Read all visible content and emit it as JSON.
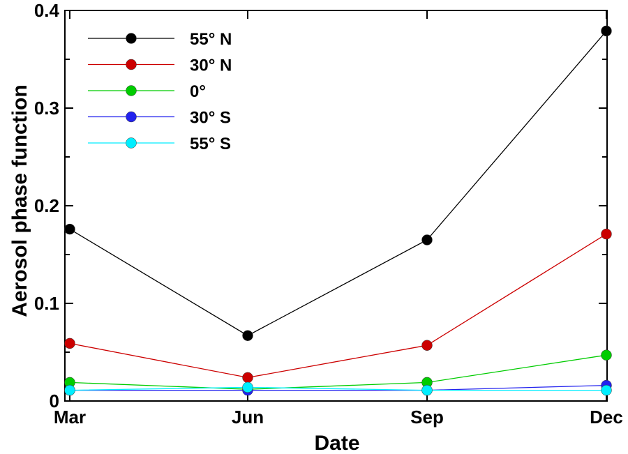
{
  "chart_data": {
    "type": "line",
    "title": "",
    "xlabel": "Date",
    "ylabel": "Aerosol phase function",
    "categories": [
      "Mar",
      "Jun",
      "Sep",
      "Dec"
    ],
    "ylim": [
      0,
      0.4
    ],
    "yticks": [
      "0",
      "0.1",
      "0.2",
      "0.3",
      "0.4"
    ],
    "grid": false,
    "legend_position": "top-left",
    "series": [
      {
        "name": "55° N",
        "color": "#000000",
        "values": [
          0.176,
          0.067,
          0.165,
          0.379
        ]
      },
      {
        "name": "30° N",
        "color": "#cc0000",
        "values": [
          0.059,
          0.024,
          0.057,
          0.171
        ]
      },
      {
        "name": "0°",
        "color": "#00cc00",
        "values": [
          0.019,
          0.012,
          0.019,
          0.047
        ]
      },
      {
        "name": "30° S",
        "color": "#2222ee",
        "values": [
          0.011,
          0.011,
          0.011,
          0.016
        ]
      },
      {
        "name": "55° S",
        "color": "#00eeff",
        "values": [
          0.011,
          0.014,
          0.011,
          0.011
        ]
      }
    ]
  }
}
